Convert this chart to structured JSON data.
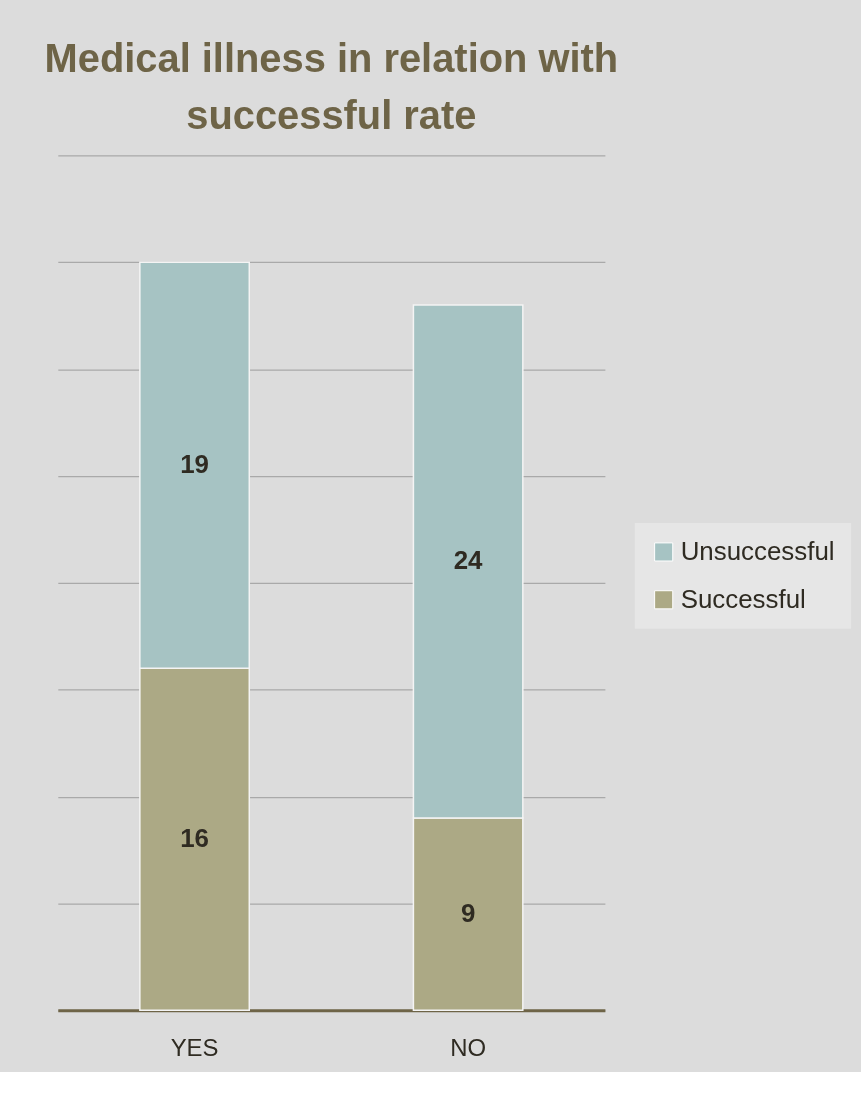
{
  "chart_data": {
    "type": "bar",
    "title": "Medical illness in relation with successful rate",
    "categories": [
      "YES",
      "NO"
    ],
    "stacked": true,
    "series": [
      {
        "name": "Successful",
        "color": "#aca985",
        "values": [
          16,
          9
        ]
      },
      {
        "name": "Unsuccessful",
        "color": "#a6c3c3",
        "values": [
          19,
          24
        ]
      }
    ],
    "ylim": [
      0,
      40
    ],
    "yticks": [
      0,
      5,
      10,
      15,
      20,
      25,
      30,
      35,
      40
    ],
    "tick_labels": "x",
    "grid": "y",
    "legend": "right",
    "data_labels": true
  }
}
